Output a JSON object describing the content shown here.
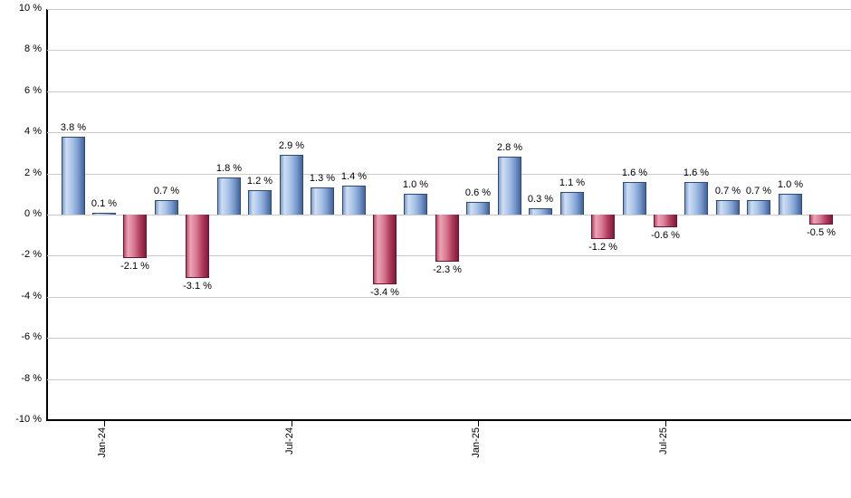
{
  "chart_data": {
    "type": "bar",
    "title": "",
    "xlabel": "",
    "ylabel": "",
    "ylim": [
      -10,
      10
    ],
    "grid": true,
    "legend": false,
    "y_ticks": [
      "10 %",
      "8 %",
      "6 %",
      "4 %",
      "2 %",
      "0 %",
      "-2 %",
      "-4 %",
      "-6 %",
      "-8 %",
      "-10 %"
    ],
    "points": [
      {
        "value": 3.8,
        "label": "3.8 %"
      },
      {
        "value": 0.1,
        "label": "0.1 %"
      },
      {
        "value": -2.1,
        "label": "-2.1 %"
      },
      {
        "value": 0.7,
        "label": "0.7 %"
      },
      {
        "value": -3.1,
        "label": "-3.1 %"
      },
      {
        "value": 1.8,
        "label": "1.8 %"
      },
      {
        "value": 1.2,
        "label": "1.2 %"
      },
      {
        "value": 2.9,
        "label": "2.9 %"
      },
      {
        "value": 1.3,
        "label": "1.3 %"
      },
      {
        "value": 1.4,
        "label": "1.4 %"
      },
      {
        "value": -3.4,
        "label": "-3.4 %"
      },
      {
        "value": 1.0,
        "label": "1.0 %"
      },
      {
        "value": -2.3,
        "label": "-2.3 %"
      },
      {
        "value": 0.6,
        "label": "0.6 %"
      },
      {
        "value": 2.8,
        "label": "2.8 %"
      },
      {
        "value": 0.3,
        "label": "0.3 %"
      },
      {
        "value": 1.1,
        "label": "1.1 %"
      },
      {
        "value": -1.2,
        "label": "-1.2 %"
      },
      {
        "value": 1.6,
        "label": "1.6 %"
      },
      {
        "value": -0.6,
        "label": "-0.6 %"
      },
      {
        "value": 1.6,
        "label": "1.6 %"
      },
      {
        "value": 0.7,
        "label": "0.7 %"
      },
      {
        "value": 0.7,
        "label": "0.7 %"
      },
      {
        "value": 1.0,
        "label": "1.0 %"
      },
      {
        "value": -0.5,
        "label": "-0.5 %"
      }
    ],
    "x_ticks": [
      {
        "bar_index": 1,
        "label": "Jan-24"
      },
      {
        "bar_index": 7,
        "label": "Jul-24"
      },
      {
        "bar_index": 13,
        "label": "Jan-25"
      },
      {
        "bar_index": 19,
        "label": "Jul-25"
      }
    ],
    "colors": {
      "positive_bar": "#89a9d6",
      "negative_bar": "#c25573",
      "grid": "#cccccc",
      "axis": "#000000",
      "text": "#000000"
    }
  }
}
